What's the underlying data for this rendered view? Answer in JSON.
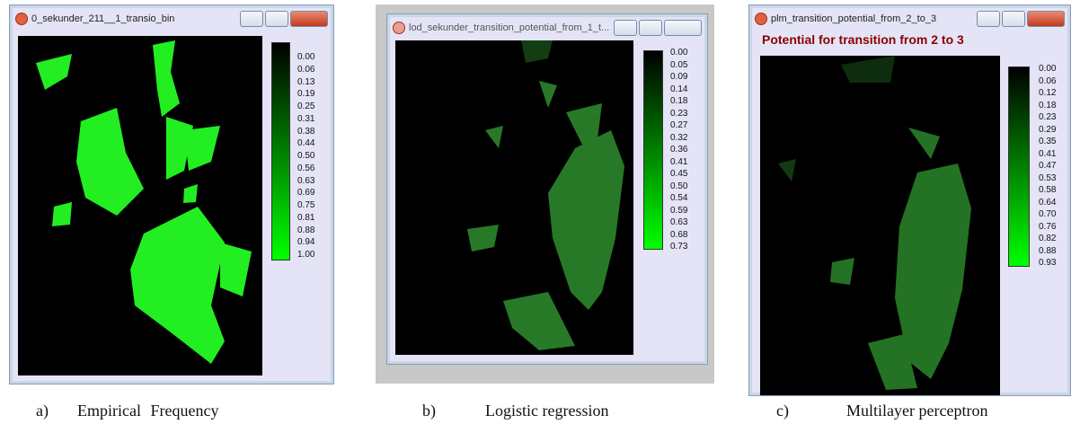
{
  "panels": [
    {
      "window_title": "0_sekunder_211__1_transio_bin",
      "legend_labels": [
        "0.00",
        "0.06",
        "0.13",
        "0.19",
        "0.25",
        "0.31",
        "0.38",
        "0.44",
        "0.50",
        "0.56",
        "0.63",
        "0.69",
        "0.75",
        "0.81",
        "0.88",
        "0.94",
        "1.00"
      ],
      "caption_letter": "a)",
      "caption": "Empirical Frequency"
    },
    {
      "window_title": "lod_sekunder_transition_potential_from_1_t...",
      "legend_labels": [
        "0.00",
        "0.05",
        "0.09",
        "0.14",
        "0.18",
        "0.23",
        "0.27",
        "0.32",
        "0.36",
        "0.41",
        "0.45",
        "0.50",
        "0.54",
        "0.59",
        "0.63",
        "0.68",
        "0.73"
      ],
      "caption_letter": "b)",
      "caption": "Logistic regression"
    },
    {
      "window_title": "plm_transition_potential_from_2_to_3",
      "map_title": "Potential for transition from 2 to 3",
      "legend_labels": [
        "0.00",
        "0.06",
        "0.12",
        "0.18",
        "0.23",
        "0.29",
        "0.35",
        "0.41",
        "0.47",
        "0.53",
        "0.58",
        "0.64",
        "0.70",
        "0.76",
        "0.82",
        "0.88",
        "0.93"
      ],
      "caption_letter": "c)",
      "caption": "Multilayer perceptron"
    }
  ]
}
